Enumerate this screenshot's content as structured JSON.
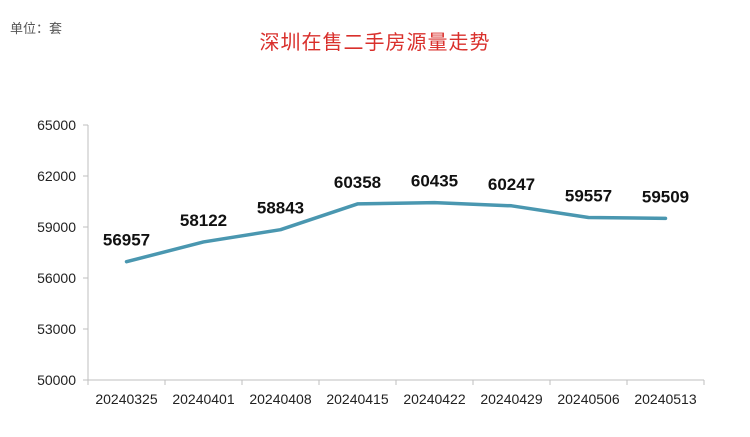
{
  "unit_label": "单位：套",
  "chart_data": {
    "type": "line",
    "title": "深圳在售二手房源量走势",
    "xlabel": "",
    "ylabel": "",
    "categories": [
      "20240325",
      "20240401",
      "20240408",
      "20240415",
      "20240422",
      "20240429",
      "20240506",
      "20240513"
    ],
    "series": [
      {
        "values": [
          56957,
          58122,
          58843,
          60358,
          60435,
          60247,
          59557,
          59509
        ]
      }
    ],
    "ylim": [
      50000,
      65000
    ],
    "yticks": [
      50000,
      53000,
      56000,
      59000,
      62000,
      65000
    ],
    "grid": false,
    "line_color": "#4a97b0"
  }
}
